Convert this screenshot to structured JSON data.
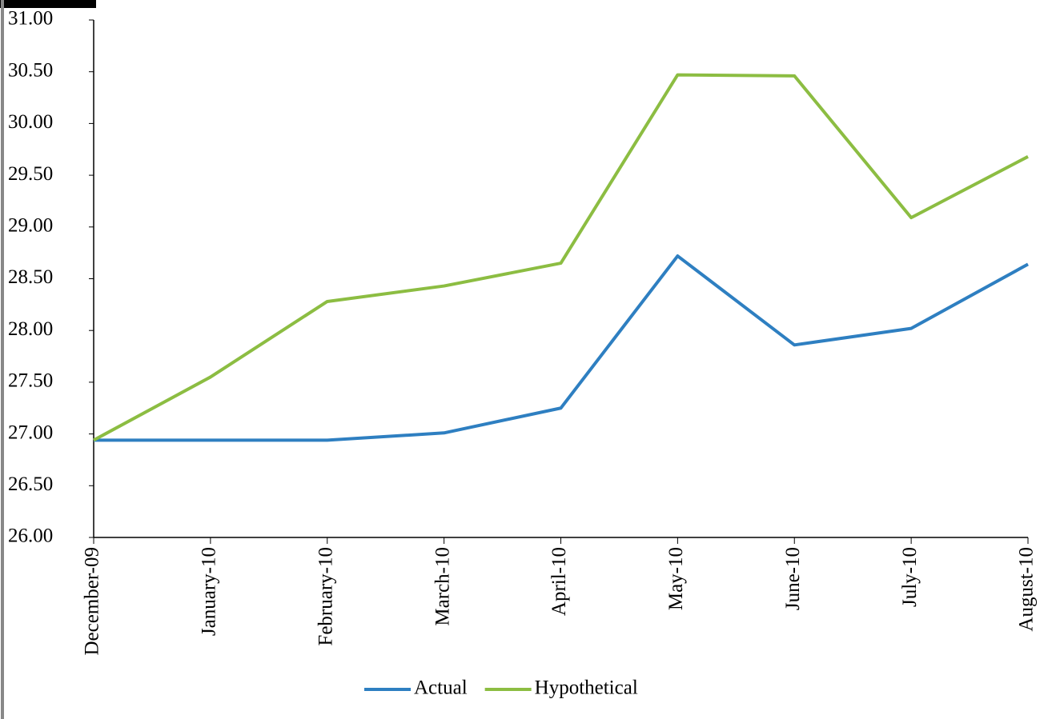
{
  "chart_data": {
    "type": "line",
    "categories": [
      "December-09",
      "January-10",
      "February-10",
      "March-10",
      "April-10",
      "May-10",
      "June-10",
      "July-10",
      "August-10"
    ],
    "series": [
      {
        "name": "Actual",
        "color": "#2e7fc1",
        "values": [
          26.94,
          26.94,
          26.94,
          27.01,
          27.25,
          28.72,
          27.86,
          28.02,
          28.64
        ]
      },
      {
        "name": "Hypothetical",
        "color": "#8cbd42",
        "values": [
          26.94,
          27.55,
          28.28,
          28.43,
          28.65,
          30.47,
          30.46,
          29.09,
          29.68
        ]
      }
    ],
    "ylim": [
      26,
      31
    ],
    "yticks": [
      {
        "value": 26,
        "label": "26.00"
      },
      {
        "value": 26.5,
        "label": "26.50"
      },
      {
        "value": 27,
        "label": "27.00"
      },
      {
        "value": 27.5,
        "label": "27.50"
      },
      {
        "value": 28,
        "label": "28.00"
      },
      {
        "value": 28.5,
        "label": "28.50"
      },
      {
        "value": 29,
        "label": "29.00"
      },
      {
        "value": 29.5,
        "label": "29.50"
      },
      {
        "value": 30,
        "label": "30.00"
      },
      {
        "value": 30.5,
        "label": "30.50"
      },
      {
        "value": 31,
        "label": "31.00"
      }
    ],
    "legend": "bottom"
  }
}
